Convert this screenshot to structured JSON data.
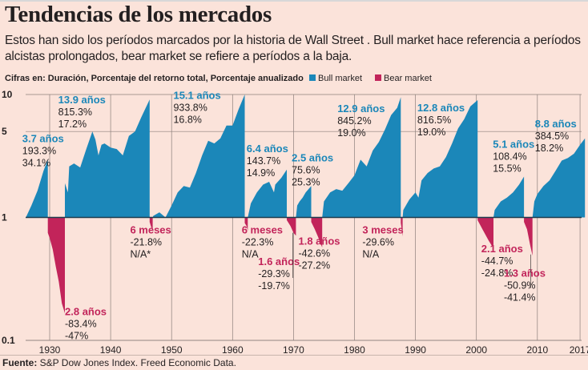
{
  "header": {
    "title": "Tendencias de los mercados",
    "subtitle": "Estos han sido los períodos marcados por la historia de Wall Street . Bull market hace referencia a períodos alcistas prolongados, bear market se refiere a períodos a la baja.",
    "figures_note": "Cifras en: Duración,   Porcentaje del retorno total,  Porcentaje anualizado"
  },
  "legend": [
    {
      "label": "Bull market",
      "color": "#1b87b9"
    },
    {
      "label": "Bear market",
      "color": "#c2245a"
    }
  ],
  "source": {
    "label": "Fuente:",
    "text": " S&P Dow Jones Index. Freed Economic Data."
  },
  "colors": {
    "bull": "#1b87b9",
    "bear": "#c2245a",
    "background": "#fbe3da",
    "grid": "#8c7f7b"
  },
  "chart_data": {
    "type": "area",
    "title": "Tendencias de los mercados",
    "xlabel": "",
    "ylabel": "",
    "yscale": "log",
    "ylim": [
      0.1,
      10
    ],
    "xlim": [
      1926,
      2018
    ],
    "y_ticks": [
      {
        "value": 10,
        "label": "10"
      },
      {
        "value": 5,
        "label": "5"
      },
      {
        "value": 1,
        "label": "1"
      },
      {
        "value": 0.1,
        "label": "0.1"
      }
    ],
    "x_ticks": [
      {
        "value": 1930,
        "label": "1930"
      },
      {
        "value": 1940,
        "label": "1940"
      },
      {
        "value": 1950,
        "label": "1950"
      },
      {
        "value": 1960,
        "label": "1960"
      },
      {
        "value": 1970,
        "label": "1970"
      },
      {
        "value": 1980,
        "label": "1980"
      },
      {
        "value": 1990,
        "label": "1990"
      },
      {
        "value": 2000,
        "label": "2000"
      },
      {
        "value": 2010,
        "label": "2010"
      },
      {
        "value": 2017,
        "label": "2017"
      }
    ],
    "grid": true,
    "legend_position": "top",
    "series": [
      {
        "name": "Bull market",
        "kind": "bull",
        "start": 1926.1,
        "end": 1929.7,
        "duration": "3.7 años",
        "total_return": "193.3%",
        "annualized": "34.1%",
        "points": [
          [
            1926.1,
            1
          ],
          [
            1927,
            1.25
          ],
          [
            1928,
            1.65
          ],
          [
            1929,
            2.4
          ],
          [
            1929.7,
            2.95
          ]
        ],
        "label_at": [
          1925.5,
          4.1
        ]
      },
      {
        "name": "Bull market",
        "kind": "bull",
        "start": 1932.5,
        "end": 1946.4,
        "duration": "13.9 años",
        "total_return": "815.3%",
        "annualized": "17.2%",
        "points": [
          [
            1932.5,
            1.9
          ],
          [
            1933,
            1.6
          ],
          [
            1933.2,
            2.6
          ],
          [
            1934,
            2.75
          ],
          [
            1935,
            2.55
          ],
          [
            1936,
            3.6
          ],
          [
            1937,
            5.0
          ],
          [
            1937.5,
            4.3
          ],
          [
            1938,
            3.2
          ],
          [
            1938.5,
            3.9
          ],
          [
            1939,
            4.0
          ],
          [
            1940,
            3.7
          ],
          [
            1941,
            3.6
          ],
          [
            1942,
            3.2
          ],
          [
            1943,
            4.6
          ],
          [
            1944,
            5.0
          ],
          [
            1945,
            6.5
          ],
          [
            1946.4,
            9.1
          ]
        ],
        "label_at": [
          1931.4,
          8.5
        ]
      },
      {
        "name": "Bull market",
        "kind": "bull",
        "start": 1946.9,
        "end": 1962.0,
        "duration": "15.1 años",
        "total_return": "933.8%",
        "annualized": "16.8%",
        "points": [
          [
            1946.9,
            1
          ],
          [
            1947,
            1.03
          ],
          [
            1948,
            1.1
          ],
          [
            1949,
            1.0
          ],
          [
            1950,
            1.25
          ],
          [
            1951,
            1.6
          ],
          [
            1952,
            1.8
          ],
          [
            1953,
            1.75
          ],
          [
            1954,
            2.3
          ],
          [
            1955,
            3.2
          ],
          [
            1956,
            4.2
          ],
          [
            1957,
            4.0
          ],
          [
            1958,
            4.4
          ],
          [
            1959,
            5.6
          ],
          [
            1960,
            5.6
          ],
          [
            1961,
            7.6
          ],
          [
            1962,
            10.0
          ]
        ],
        "label_at": [
          1950.3,
          9.2
        ]
      },
      {
        "name": "Bull market",
        "kind": "bull",
        "start": 1962.5,
        "end": 1968.9,
        "duration": "6.4 años",
        "total_return": "143.7%",
        "annualized": "14.9%",
        "points": [
          [
            1962.5,
            1
          ],
          [
            1963,
            1.3
          ],
          [
            1964,
            1.6
          ],
          [
            1965,
            1.85
          ],
          [
            1966,
            1.95
          ],
          [
            1966.8,
            1.6
          ],
          [
            1967,
            1.85
          ],
          [
            1968,
            2.1
          ],
          [
            1968.9,
            2.45
          ]
        ],
        "label_at": [
          1962.3,
          3.4
        ]
      },
      {
        "name": "Bull market",
        "kind": "bull",
        "start": 1970.4,
        "end": 1972.9,
        "duration": "2.5 años",
        "total_return": "75.6%",
        "annualized": "25.3%",
        "points": [
          [
            1970.4,
            1
          ],
          [
            1970.6,
            1.25
          ],
          [
            1971,
            1.35
          ],
          [
            1971.5,
            1.45
          ],
          [
            1972,
            1.6
          ],
          [
            1972.9,
            1.8
          ]
        ],
        "label_at": [
          1969.7,
          2.85
        ]
      },
      {
        "name": "Bull market",
        "kind": "bull",
        "start": 1974.7,
        "end": 1987.6,
        "duration": "12.9 años",
        "total_return": "845.2%",
        "annualized": "19.0%",
        "points": [
          [
            1974.7,
            1
          ],
          [
            1975,
            1.35
          ],
          [
            1976,
            1.6
          ],
          [
            1977,
            1.7
          ],
          [
            1978,
            1.65
          ],
          [
            1979,
            1.9
          ],
          [
            1980,
            2.2
          ],
          [
            1981,
            2.95
          ],
          [
            1982,
            2.6
          ],
          [
            1983,
            3.5
          ],
          [
            1984,
            4.1
          ],
          [
            1985,
            5.2
          ],
          [
            1986,
            6.8
          ],
          [
            1987,
            7.8
          ],
          [
            1987.6,
            9.5
          ]
        ],
        "label_at": [
          1977.2,
          7.2
        ]
      },
      {
        "name": "Bull market",
        "kind": "bull",
        "start": 1987.9,
        "end": 2000.2,
        "duration": "12.8 años",
        "total_return": "816.5%",
        "annualized": "19.0%",
        "points": [
          [
            1987.9,
            1
          ],
          [
            1988,
            1.15
          ],
          [
            1989,
            1.4
          ],
          [
            1990,
            1.6
          ],
          [
            1990.5,
            1.45
          ],
          [
            1991,
            2.0
          ],
          [
            1992,
            2.3
          ],
          [
            1993,
            2.5
          ],
          [
            1994,
            2.6
          ],
          [
            1995,
            3.1
          ],
          [
            1996,
            4.0
          ],
          [
            1997,
            5.3
          ],
          [
            1998,
            6.3
          ],
          [
            1999,
            8.0
          ],
          [
            2000.2,
            9.0
          ]
        ],
        "label_at": [
          1990.3,
          7.3
        ]
      },
      {
        "name": "Bull market",
        "kind": "bull",
        "start": 2002.8,
        "end": 2007.8,
        "duration": "5.1 años",
        "total_return": "108.4%",
        "annualized": "15.5%",
        "points": [
          [
            2002.8,
            1
          ],
          [
            2003,
            1.15
          ],
          [
            2004,
            1.35
          ],
          [
            2005,
            1.45
          ],
          [
            2006,
            1.6
          ],
          [
            2007,
            1.85
          ],
          [
            2007.8,
            2.15
          ]
        ],
        "label_at": [
          2002.7,
          3.7
        ]
      },
      {
        "name": "Bull market",
        "kind": "bull",
        "start": 2009.2,
        "end": 2017.8,
        "duration": "8.8 años",
        "total_return": "384.5%",
        "annualized": "18.2%",
        "points": [
          [
            2009.2,
            1
          ],
          [
            2009.5,
            1.35
          ],
          [
            2010,
            1.55
          ],
          [
            2011,
            1.8
          ],
          [
            2012,
            2.0
          ],
          [
            2013,
            2.4
          ],
          [
            2014,
            2.9
          ],
          [
            2015,
            3.05
          ],
          [
            2016,
            3.3
          ],
          [
            2017,
            3.9
          ],
          [
            2017.8,
            4.4
          ]
        ],
        "label_at": [
          2009.6,
          5.4
        ]
      },
      {
        "name": "Bear market",
        "kind": "bear",
        "start": 1929.7,
        "end": 1932.5,
        "duration": "2.8 años",
        "total_return": "-83.4%",
        "annualized": "-47%",
        "points": [
          [
            1929.7,
            0.75
          ],
          [
            1930,
            0.68
          ],
          [
            1930.5,
            0.55
          ],
          [
            1931,
            0.4
          ],
          [
            1931.5,
            0.3
          ],
          [
            1932,
            0.2
          ],
          [
            1932.5,
            0.166
          ]
        ],
        "label_at": [
          1932.5,
          0.16
        ]
      },
      {
        "name": "Bear market",
        "kind": "bear",
        "start": 1946.4,
        "end": 1946.9,
        "duration": "6 meses",
        "total_return": "-21.8%",
        "annualized": "N/A*",
        "points": [
          [
            1946.4,
            0.92
          ],
          [
            1946.6,
            0.85
          ],
          [
            1946.9,
            0.78
          ]
        ],
        "label_at": [
          1943.2,
          0.74
        ]
      },
      {
        "name": "Bear market",
        "kind": "bear",
        "start": 1962.0,
        "end": 1962.5,
        "duration": "6 meses",
        "total_return": "-22.3%",
        "annualized": "N/A",
        "points": [
          [
            1962,
            0.9
          ],
          [
            1962.3,
            0.85
          ],
          [
            1962.5,
            0.78
          ]
        ],
        "label_at": [
          1961.5,
          0.74
        ]
      },
      {
        "name": "Bear market",
        "kind": "bear",
        "start": 1968.9,
        "end": 1970.4,
        "duration": "1.6 años",
        "total_return": "-29.3%",
        "annualized": "-19.7%",
        "points": [
          [
            1968.9,
            0.95
          ],
          [
            1969.5,
            0.85
          ],
          [
            1970,
            0.75
          ],
          [
            1970.4,
            0.71
          ]
        ],
        "label_at": [
          1964.2,
          0.41
        ]
      },
      {
        "name": "Bear market",
        "kind": "bear",
        "start": 1972.9,
        "end": 1974.7,
        "duration": "1.8 años",
        "total_return": "-42.6%",
        "annualized": "-27.2%",
        "points": [
          [
            1972.9,
            0.92
          ],
          [
            1973.5,
            0.8
          ],
          [
            1974,
            0.7
          ],
          [
            1974.7,
            0.57
          ]
        ],
        "label_at": [
          1970.8,
          0.6
        ]
      },
      {
        "name": "Bear market",
        "kind": "bear",
        "start": 1987.6,
        "end": 1987.9,
        "duration": "3 meses",
        "total_return": "-29.6%",
        "annualized": "N/A",
        "points": [
          [
            1987.6,
            0.9
          ],
          [
            1987.75,
            0.8
          ],
          [
            1987.9,
            0.7
          ]
        ],
        "label_at": [
          1981.3,
          0.74
        ]
      },
      {
        "name": "Bear market",
        "kind": "bear",
        "start": 2000.2,
        "end": 2002.8,
        "duration": "2.1 años",
        "total_return": "-44.7%",
        "annualized": "-24.8%",
        "points": [
          [
            2000.2,
            0.95
          ],
          [
            2001,
            0.8
          ],
          [
            2002,
            0.65
          ],
          [
            2002.8,
            0.56
          ]
        ],
        "label_at": [
          2000.8,
          0.52
        ]
      },
      {
        "name": "Bear market",
        "kind": "bear",
        "start": 2007.8,
        "end": 2009.2,
        "duration": "1.3 años",
        "total_return": "-50.9%",
        "annualized": "-41.4%",
        "points": [
          [
            2007.8,
            0.92
          ],
          [
            2008.3,
            0.8
          ],
          [
            2008.8,
            0.6
          ],
          [
            2009.2,
            0.49
          ]
        ],
        "label_at": [
          2004.5,
          0.33
        ]
      }
    ]
  }
}
